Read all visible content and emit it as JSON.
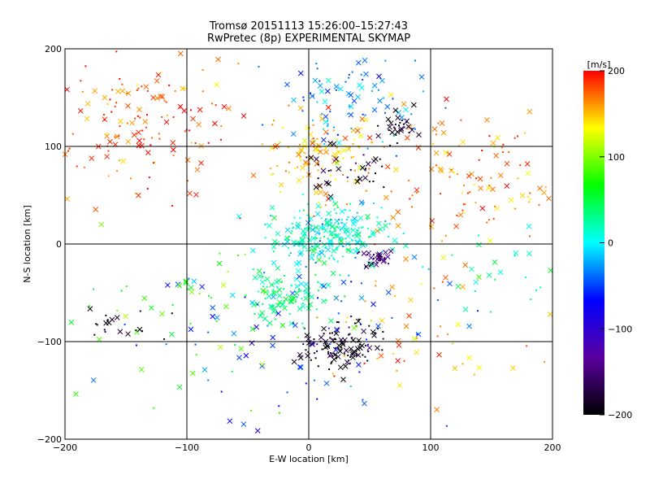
{
  "chart_data": {
    "type": "scatter",
    "title": "Tromsø 20151113 15:26:00–15:27:43",
    "subtitle": "RwPretec (8p) EXPERIMENTAL SKYMAP",
    "xlabel": "E-W location [km]",
    "ylabel": "N-S location [km]",
    "xlim": [
      -200,
      200
    ],
    "ylim": [
      -200,
      200
    ],
    "x_ticks": [
      -200,
      -100,
      0,
      100,
      200
    ],
    "y_ticks": [
      -200,
      -100,
      0,
      100,
      200
    ],
    "grid": true,
    "marker_types": [
      "dot",
      "cross"
    ],
    "colorbar": {
      "label": "[m/s]",
      "range": [
        -200,
        200
      ],
      "ticks": [
        -200,
        -100,
        0,
        100,
        200
      ],
      "colormap": [
        "#000000",
        "#5a00a0",
        "#0000ff",
        "#00ffff",
        "#00ff00",
        "#ffff00",
        "#ff0000"
      ]
    },
    "clusters": [
      {
        "x": -130,
        "y": 130,
        "spread": [
          40,
          40
        ],
        "velocity": 180,
        "count": 160
      },
      {
        "x": 8,
        "y": 90,
        "spread": [
          25,
          22
        ],
        "velocity": 150,
        "count": 120
      },
      {
        "x": 125,
        "y": 70,
        "spread": [
          45,
          40
        ],
        "velocity": 170,
        "count": 130
      },
      {
        "x": 35,
        "y": 150,
        "spread": [
          30,
          25
        ],
        "velocity": -30,
        "count": 90
      },
      {
        "x": 75,
        "y": 120,
        "spread": [
          10,
          8
        ],
        "velocity": -195,
        "count": 30
      },
      {
        "x": 40,
        "y": 75,
        "spread": [
          20,
          12
        ],
        "velocity": -190,
        "count": 40
      },
      {
        "x": 15,
        "y": 10,
        "spread": [
          25,
          15
        ],
        "velocity": 10,
        "count": 260
      },
      {
        "x": 55,
        "y": -15,
        "spread": [
          6,
          5
        ],
        "velocity": -150,
        "count": 35
      },
      {
        "x": -20,
        "y": -55,
        "spread": [
          15,
          12
        ],
        "velocity": 30,
        "count": 100
      },
      {
        "x": 25,
        "y": -105,
        "spread": [
          18,
          12
        ],
        "velocity": -195,
        "count": 120
      },
      {
        "x": -10,
        "y": -90,
        "spread": [
          60,
          50
        ],
        "velocity": -50,
        "count": 90
      },
      {
        "x": -90,
        "y": -70,
        "spread": [
          60,
          40
        ],
        "velocity": 80,
        "count": 60
      },
      {
        "x": -160,
        "y": -85,
        "spread": [
          20,
          10
        ],
        "velocity": -195,
        "count": 20
      },
      {
        "x": 100,
        "y": -100,
        "spread": [
          50,
          40
        ],
        "velocity": 160,
        "count": 50
      },
      {
        "x": 150,
        "y": -20,
        "spread": [
          40,
          20
        ],
        "velocity": 20,
        "count": 30
      }
    ]
  }
}
